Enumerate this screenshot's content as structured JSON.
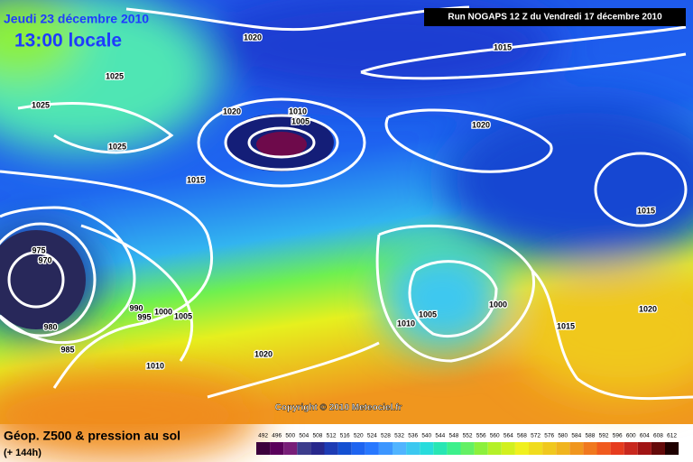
{
  "header": {
    "date": "Jeudi 23 décembre 2010",
    "time": "13:00 locale",
    "run": "Run NOGAPS 12 Z du Vendredi 17 décembre 2010"
  },
  "copyright": "Copyright © 2010 Meteociel.fr",
  "footer": {
    "title": "Géop. Z500 & pression au sol",
    "lead": "(+ 144h)"
  },
  "isobar_labels": [
    1020,
    1025,
    1025,
    1025,
    1020,
    1010,
    1005,
    1015,
    1015,
    1020,
    1015,
    975,
    970,
    980,
    985,
    990,
    995,
    1000,
    1005,
    1010,
    1020,
    1010,
    1005,
    1000,
    1015,
    1020
  ],
  "scale": {
    "values": [
      492,
      496,
      500,
      504,
      508,
      512,
      516,
      520,
      524,
      528,
      532,
      536,
      540,
      544,
      548,
      552,
      556,
      560,
      564,
      568,
      572,
      576,
      580,
      584,
      588,
      592,
      596,
      600,
      604,
      608,
      612
    ],
    "colors": [
      "#3c003c",
      "#5a005a",
      "#781e78",
      "#3c3c8c",
      "#28288c",
      "#1e3cb4",
      "#1450d2",
      "#1e64f0",
      "#2878ff",
      "#3c96ff",
      "#50b4ff",
      "#3cc8f0",
      "#28dcdc",
      "#28e6b4",
      "#3cf08c",
      "#64f064",
      "#8cf03c",
      "#b4f028",
      "#d2f01e",
      "#f0f01e",
      "#f0dc1e",
      "#f0c81e",
      "#f0b41e",
      "#f0961e",
      "#f0781e",
      "#f05a1e",
      "#e63c1e",
      "#c8281e",
      "#a01414",
      "#640a0a",
      "#1e0000"
    ]
  }
}
